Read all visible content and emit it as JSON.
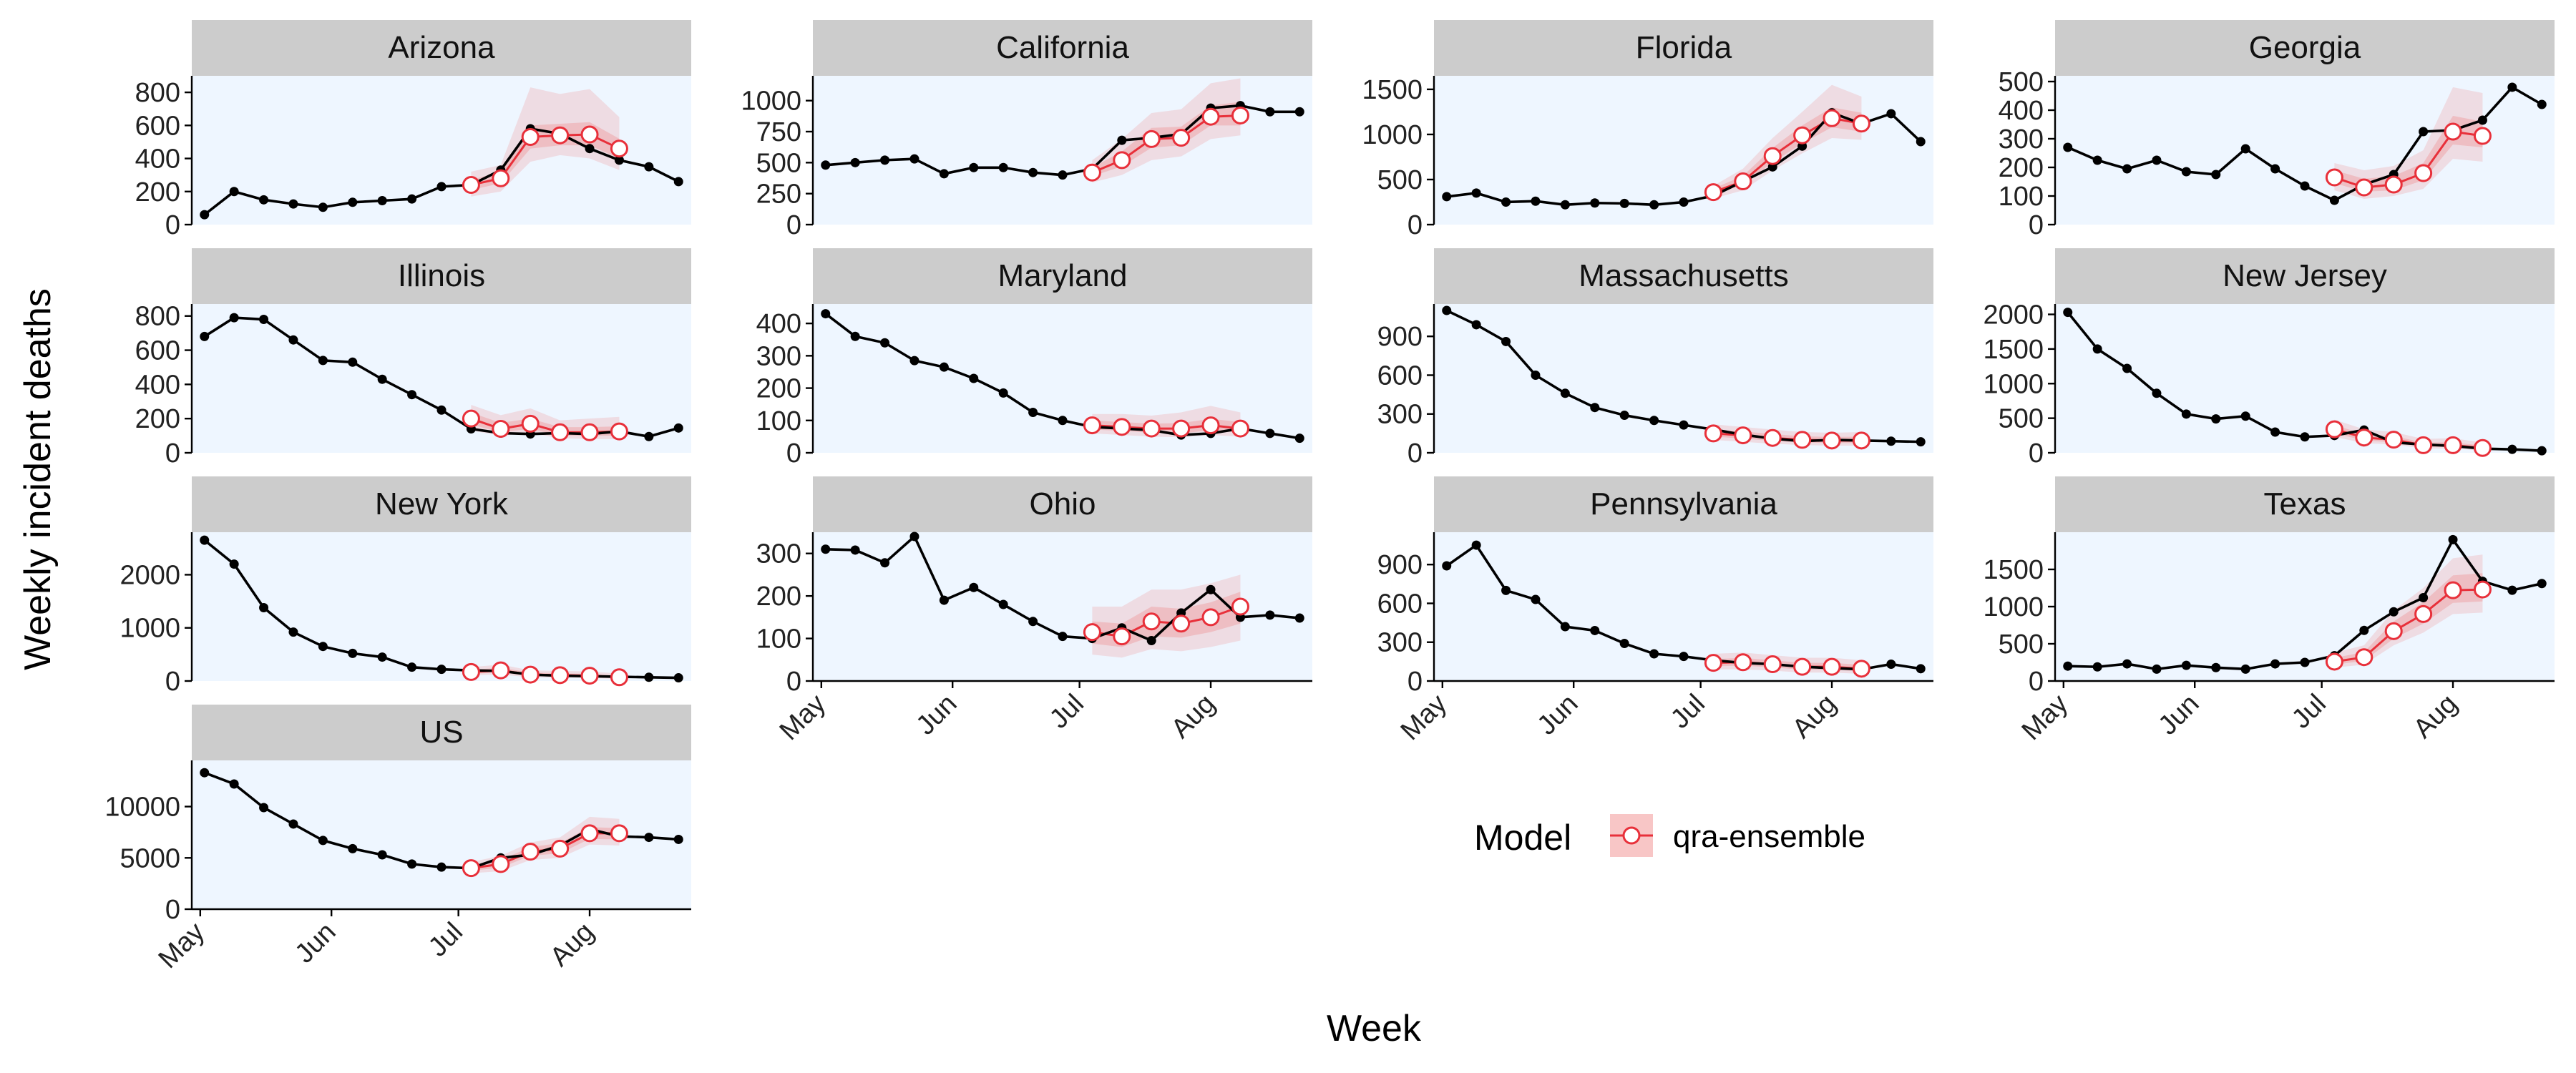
{
  "figure": {
    "xlabel": "Week",
    "ylabel": "Weekly incident deaths",
    "legend_title": "Model",
    "legend_label": "qra-ensemble",
    "colors": {
      "observed": "#000000",
      "forecast": "#e8303a",
      "band": "#f08080",
      "panel_background": "#eef6ff",
      "strip": "#cccccc"
    }
  },
  "chart_data": {
    "type": "line",
    "facets": true,
    "legend": "bottom-right",
    "x_dates": [
      "2020-05-02",
      "2020-05-09",
      "2020-05-16",
      "2020-05-23",
      "2020-05-30",
      "2020-06-06",
      "2020-06-13",
      "2020-06-20",
      "2020-06-27",
      "2020-07-04",
      "2020-07-11",
      "2020-07-18",
      "2020-07-25",
      "2020-08-01",
      "2020-08-08",
      "2020-08-15",
      "2020-08-22"
    ],
    "x_ticks": [
      {
        "label": "May",
        "date": "2020-05-01"
      },
      {
        "label": "Jun",
        "date": "2020-06-01"
      },
      {
        "label": "Jul",
        "date": "2020-07-01"
      },
      {
        "label": "Aug",
        "date": "2020-08-01"
      }
    ],
    "forecast_dates": [
      "2020-07-04",
      "2020-07-11",
      "2020-07-18",
      "2020-07-25",
      "2020-08-01",
      "2020-08-08"
    ],
    "panels": [
      {
        "title": "Arizona",
        "ylim": [
          0,
          900
        ],
        "yticks": [
          0,
          200,
          400,
          600,
          800
        ],
        "yticklabels": [
          "0",
          "200",
          "400",
          "600",
          "800"
        ],
        "observed": [
          60,
          200,
          150,
          125,
          105,
          135,
          145,
          155,
          230,
          240,
          330,
          580,
          550,
          460,
          390,
          350,
          260
        ],
        "forecast": [
          240,
          280,
          530,
          540,
          545,
          460
        ],
        "lower90": [
          170,
          200,
          380,
          420,
          400,
          330
        ],
        "upper90": [
          320,
          360,
          830,
          790,
          820,
          650
        ],
        "lower50": [
          210,
          250,
          460,
          480,
          480,
          400
        ],
        "upper50": [
          270,
          320,
          600,
          610,
          620,
          520
        ]
      },
      {
        "title": "California",
        "ylim": [
          0,
          1200
        ],
        "yticks": [
          0,
          250,
          500,
          750,
          1000
        ],
        "yticklabels": [
          "0",
          "250",
          "500",
          "750",
          "1000"
        ],
        "observed": [
          480,
          500,
          520,
          530,
          410,
          460,
          460,
          420,
          400,
          450,
          680,
          700,
          730,
          940,
          960,
          910,
          910
        ],
        "forecast": [
          420,
          520,
          690,
          700,
          870,
          880
        ],
        "lower90": [
          340,
          400,
          520,
          550,
          690,
          720
        ],
        "upper90": [
          520,
          690,
          900,
          930,
          1140,
          1180
        ],
        "lower50": [
          390,
          470,
          620,
          640,
          800,
          800
        ],
        "upper50": [
          460,
          590,
          780,
          790,
          960,
          990
        ]
      },
      {
        "title": "Florida",
        "ylim": [
          0,
          1650
        ],
        "yticks": [
          0,
          500,
          1000,
          1500
        ],
        "yticklabels": [
          "0",
          "500",
          "1000",
          "1500"
        ],
        "observed": [
          310,
          350,
          250,
          260,
          220,
          240,
          235,
          220,
          250,
          320,
          480,
          640,
          870,
          1240,
          1120,
          1230,
          920
        ],
        "forecast": [
          360,
          480,
          760,
          990,
          1180,
          1120
        ],
        "lower90": [
          290,
          380,
          600,
          790,
          960,
          940
        ],
        "upper90": [
          430,
          620,
          960,
          1250,
          1550,
          1420
        ],
        "lower50": [
          330,
          440,
          690,
          900,
          1080,
          1030
        ],
        "upper50": [
          400,
          540,
          850,
          1100,
          1300,
          1240
        ]
      },
      {
        "title": "Georgia",
        "ylim": [
          0,
          520
        ],
        "yticks": [
          0,
          100,
          200,
          300,
          400,
          500
        ],
        "yticklabels": [
          "0",
          "100",
          "200",
          "300",
          "400",
          "500"
        ],
        "observed": [
          270,
          225,
          195,
          225,
          185,
          175,
          265,
          195,
          135,
          85,
          140,
          175,
          325,
          330,
          365,
          480,
          420
        ],
        "forecast": [
          165,
          130,
          140,
          180,
          325,
          310
        ],
        "lower90": [
          120,
          90,
          100,
          125,
          230,
          220
        ],
        "upper90": [
          215,
          190,
          205,
          260,
          480,
          460
        ],
        "lower50": [
          145,
          115,
          120,
          155,
          280,
          270
        ],
        "upper50": [
          190,
          160,
          170,
          215,
          380,
          360
        ]
      },
      {
        "title": "Illinois",
        "ylim": [
          0,
          870
        ],
        "yticks": [
          0,
          200,
          400,
          600,
          800
        ],
        "yticklabels": [
          "0",
          "200",
          "400",
          "600",
          "800"
        ],
        "observed": [
          680,
          790,
          780,
          660,
          540,
          530,
          430,
          340,
          250,
          140,
          115,
          110,
          115,
          110,
          125,
          95,
          145
        ],
        "forecast": [
          200,
          140,
          170,
          120,
          120,
          125
        ],
        "lower90": [
          130,
          100,
          115,
          85,
          80,
          80
        ],
        "upper90": [
          280,
          220,
          260,
          190,
          200,
          210
        ],
        "lower50": [
          165,
          120,
          140,
          100,
          100,
          100
        ],
        "upper50": [
          235,
          175,
          200,
          150,
          150,
          155
        ]
      },
      {
        "title": "Maryland",
        "ylim": [
          0,
          460
        ],
        "yticks": [
          0,
          100,
          200,
          300,
          400
        ],
        "yticklabels": [
          "0",
          "100",
          "200",
          "300",
          "400"
        ],
        "observed": [
          430,
          360,
          340,
          285,
          265,
          230,
          185,
          125,
          100,
          80,
          75,
          70,
          55,
          60,
          75,
          60,
          45
        ],
        "forecast": [
          85,
          80,
          75,
          75,
          85,
          75
        ],
        "lower90": [
          60,
          55,
          50,
          48,
          55,
          50
        ],
        "upper90": [
          120,
          120,
          115,
          125,
          145,
          125
        ],
        "lower50": [
          72,
          68,
          62,
          60,
          70,
          62
        ],
        "upper50": [
          100,
          95,
          90,
          92,
          105,
          95
        ]
      },
      {
        "title": "Massachusetts",
        "ylim": [
          0,
          1150
        ],
        "yticks": [
          0,
          300,
          600,
          900
        ],
        "yticklabels": [
          "0",
          "300",
          "600",
          "900"
        ],
        "observed": [
          1100,
          990,
          860,
          600,
          460,
          350,
          290,
          250,
          215,
          180,
          140,
          110,
          90,
          100,
          95,
          90,
          85
        ],
        "forecast": [
          150,
          135,
          115,
          100,
          95,
          95
        ],
        "lower90": [
          100,
          85,
          70,
          60,
          55,
          55
        ],
        "upper90": [
          220,
          200,
          180,
          160,
          155,
          160
        ],
        "lower50": [
          125,
          110,
          92,
          80,
          75,
          75
        ],
        "upper50": [
          180,
          165,
          145,
          128,
          122,
          125
        ]
      },
      {
        "title": "New Jersey",
        "ylim": [
          0,
          2150
        ],
        "yticks": [
          0,
          500,
          1000,
          1500,
          2000
        ],
        "yticklabels": [
          "0",
          "500",
          "1000",
          "1500",
          "2000"
        ],
        "observed": [
          2030,
          1500,
          1220,
          860,
          560,
          490,
          530,
          300,
          230,
          250,
          330,
          150,
          120,
          100,
          60,
          50,
          30
        ],
        "forecast": [
          340,
          220,
          190,
          110,
          110,
          70
        ],
        "lower90": [
          230,
          140,
          120,
          65,
          60,
          35
        ],
        "upper90": [
          480,
          340,
          300,
          200,
          210,
          150
        ],
        "lower50": [
          280,
          180,
          150,
          85,
          85,
          50
        ],
        "upper50": [
          400,
          270,
          240,
          150,
          150,
          105
        ]
      },
      {
        "title": "New York",
        "ylim": [
          0,
          2800
        ],
        "yticks": [
          0,
          1000,
          2000
        ],
        "yticklabels": [
          "0",
          "1000",
          "2000"
        ],
        "observed": [
          2650,
          2200,
          1380,
          920,
          650,
          520,
          450,
          260,
          220,
          200,
          190,
          120,
          100,
          90,
          80,
          70,
          60
        ],
        "forecast": [
          170,
          200,
          120,
          110,
          100,
          70
        ],
        "lower90": [
          110,
          120,
          70,
          60,
          55,
          35
        ],
        "upper90": [
          260,
          310,
          200,
          190,
          180,
          140
        ],
        "lower50": [
          135,
          160,
          95,
          85,
          78,
          50
        ],
        "upper50": [
          210,
          250,
          160,
          145,
          135,
          100
        ]
      },
      {
        "title": "Ohio",
        "ylim": [
          0,
          350
        ],
        "yticks": [
          0,
          100,
          200,
          300
        ],
        "yticklabels": [
          "0",
          "100",
          "200",
          "300"
        ],
        "observed": [
          310,
          308,
          278,
          340,
          190,
          220,
          180,
          140,
          105,
          100,
          125,
          95,
          160,
          215,
          150,
          155,
          148
        ],
        "forecast": [
          115,
          105,
          140,
          135,
          150,
          175
        ],
        "lower90": [
          62,
          55,
          75,
          70,
          80,
          95
        ],
        "upper90": [
          175,
          175,
          215,
          215,
          230,
          250
        ],
        "lower50": [
          88,
          80,
          105,
          102,
          115,
          135
        ],
        "upper50": [
          140,
          135,
          175,
          170,
          185,
          210
        ]
      },
      {
        "title": "Pennsylvania",
        "ylim": [
          0,
          1150
        ],
        "yticks": [
          0,
          300,
          600,
          900
        ],
        "yticklabels": [
          "0",
          "300",
          "600",
          "900"
        ],
        "observed": [
          890,
          1050,
          700,
          630,
          420,
          390,
          290,
          210,
          190,
          160,
          140,
          130,
          110,
          100,
          90,
          130,
          95
        ],
        "forecast": [
          140,
          145,
          130,
          110,
          110,
          95
        ],
        "lower90": [
          90,
          90,
          80,
          65,
          65,
          55
        ],
        "upper90": [
          210,
          220,
          200,
          180,
          180,
          160
        ],
        "lower50": [
          115,
          118,
          105,
          88,
          88,
          75
        ],
        "upper50": [
          170,
          178,
          160,
          140,
          140,
          125
        ]
      },
      {
        "title": "Texas",
        "ylim": [
          0,
          2000
        ],
        "yticks": [
          0,
          500,
          1000,
          1500
        ],
        "yticklabels": [
          "0",
          "500",
          "1000",
          "1500"
        ],
        "observed": [
          200,
          190,
          230,
          160,
          210,
          180,
          160,
          230,
          250,
          340,
          680,
          930,
          1120,
          1900,
          1340,
          1220,
          1310
        ],
        "forecast": [
          260,
          320,
          670,
          900,
          1220,
          1230
        ],
        "lower90": [
          180,
          220,
          480,
          650,
          900,
          920
        ],
        "upper90": [
          380,
          480,
          950,
          1250,
          1650,
          1700
        ],
        "lower50": [
          220,
          270,
          570,
          770,
          1050,
          1070
        ],
        "upper50": [
          310,
          390,
          800,
          1060,
          1420,
          1450
        ]
      },
      {
        "title": "US",
        "ylim": [
          0,
          14500
        ],
        "yticks": [
          0,
          5000,
          10000
        ],
        "yticklabels": [
          "0",
          "5000",
          "10000"
        ],
        "observed": [
          13300,
          12200,
          9900,
          8300,
          6700,
          5900,
          5300,
          4400,
          4100,
          4000,
          5000,
          5300,
          6200,
          7800,
          7100,
          7000,
          6800
        ],
        "forecast": [
          4000,
          4400,
          5600,
          5900,
          7400,
          7400
        ],
        "lower90": [
          3500,
          3700,
          4800,
          5000,
          6300,
          6200
        ],
        "upper90": [
          4600,
          5200,
          6500,
          7000,
          9000,
          8800
        ],
        "lower50": [
          3750,
          4050,
          5200,
          5450,
          6850,
          6800
        ],
        "upper50": [
          4300,
          4800,
          6050,
          6450,
          8000,
          7900
        ]
      }
    ]
  }
}
